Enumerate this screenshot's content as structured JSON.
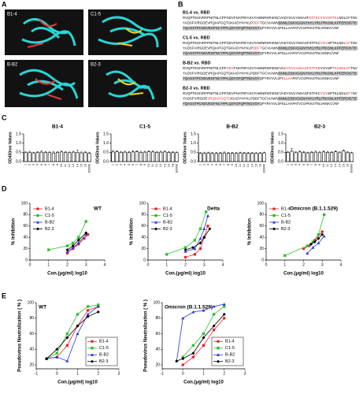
{
  "panel_labels": [
    "A",
    "B",
    "C",
    "D",
    "E"
  ],
  "structures": [
    "B1-4",
    "C1-5",
    "B-B2",
    "B2-3"
  ],
  "alignments": [
    {
      "title": "B1-4 vs. RBD",
      "lines": [
        [
          {
            "text": "RVQPTESIVRFPNITNLCPFGEVFNATRFASVYAWNRKRISNCVADYSVLYNSASF",
            "style": "plain"
          },
          {
            "text": "STFKCYGVSPTKL",
            "style": "red"
          },
          {
            "text": "NDLCFTNV",
            "style": "plain"
          }
        ],
        [
          {
            "text": "YADSFVIRGDEVRQIAPGQTGKIADYNYKLP",
            "style": "plain"
          },
          {
            "text": "DDF",
            "style": "red"
          },
          {
            "text": "TGCVIAWN",
            "style": "plain"
          },
          {
            "text": "SNNLDSKVGGNYNYLYRLFRKSNLKPFERDISTEI",
            "style": "shaded"
          }
        ],
        [
          {
            "text": "YQAGSTPCNGVEGFNCYFPLQSYGFQPTNGVGYQ",
            "style": "shaded"
          },
          {
            "text": "PYRVVVLSFELLHAPATVCGPKKSTNLVKNKCVNF",
            "style": "plain"
          }
        ]
      ]
    },
    {
      "title": "C1-5 vs. RBD",
      "lines": [
        [
          {
            "text": "RVQPTESIVRFPNITNLCPFGEVFNATRFASVYAWNRKRISNCVADYSVLYNSASFSTFKC",
            "style": "plain"
          },
          {
            "text": "YGV",
            "style": "red"
          },
          {
            "text": "SPTKLND",
            "style": "plain"
          },
          {
            "text": "LCF",
            "style": "red"
          },
          {
            "text": "TNV",
            "style": "plain"
          }
        ],
        [
          {
            "text": "YADSFVIRGDEVRQIAPGQTGKIADYNYKLP",
            "style": "plain"
          },
          {
            "text": "DDFT",
            "style": "red"
          },
          {
            "text": "GCVIAWN",
            "style": "plain"
          },
          {
            "text": "SNNLDSKVGGNYNYLYRLFRKSNLKPFERDISTEI",
            "style": "shaded"
          }
        ],
        [
          {
            "text": "YQAGSTPCNGVEGFNCYFPLQSYGFQPTNGVGYQ",
            "style": "shaded"
          },
          {
            "text": "PYRVVVLSFELLHAPATVCGPKKSTNLVKNKCVNF",
            "style": "plain"
          }
        ]
      ]
    },
    {
      "title": "B-B2 vs. RBD",
      "lines": [
        [
          {
            "text": "RVQPTESIVRFPNITNLCPF",
            "style": "plain"
          },
          {
            "text": "GEV",
            "style": "red"
          },
          {
            "text": "FNATRFASVYAWNRKRISNCVA",
            "style": "plain"
          },
          {
            "text": "DYSVLYNSASFSTFK",
            "style": "red"
          },
          {
            "text": "CYGVSP",
            "style": "plain"
          },
          {
            "text": "TKLNDLCF",
            "style": "red"
          },
          {
            "text": "TNV",
            "style": "plain"
          }
        ],
        [
          {
            "text": "YADSFVIRGDEVRQIAPGQTGKIADYNYKLPDDFTGCVIAWN",
            "style": "plain"
          },
          {
            "text": "SNNLDSKVGGNYNYLYRLFRKSNLKPFERDISTEI",
            "style": "shaded"
          }
        ],
        [
          {
            "text": "YQAGSTPCNGVEGFNCYFPLQSYGFQPTNGVGYQ",
            "style": "shaded"
          },
          {
            "text": "PYRVVVLSF",
            "style": "plain"
          },
          {
            "text": "ELLHA",
            "style": "red"
          },
          {
            "text": "PATVCGPKKSTNLVKNKCVNF",
            "style": "plain"
          }
        ]
      ]
    },
    {
      "title": "B2-3 vs. RBD",
      "lines": [
        [
          {
            "text": "RVQPTESIVRFPNITNLCPFGEVFNATRFASVYAWNRKRISNCVADYSVLYNSASFSTFKC",
            "style": "plain"
          },
          {
            "text": "YGV",
            "style": "red"
          },
          {
            "text": "SPTKLNDLC",
            "style": "plain"
          },
          {
            "text": "FT",
            "style": "red"
          },
          {
            "text": "NV",
            "style": "plain"
          }
        ],
        [
          {
            "text": "YADSFVIRGDE",
            "style": "plain"
          },
          {
            "text": "VRQIAPGQTG",
            "style": "red"
          },
          {
            "text": "KIADYNYKLPDDFTGCVIAWN",
            "style": "plain"
          },
          {
            "text": "SNNLDSKVGGNYNYLYRLFRKSNLKPFERDISTEI",
            "style": "shaded"
          }
        ],
        [
          {
            "text": "YQAGSTPCNGVEGFNCYFPLQSYGFQPTNGVGYQ",
            "style": "shaded"
          },
          {
            "text": "PYRVVVLSFELLHAPATVCGPKKSTNLVKNKCVNF",
            "style": "plain"
          }
        ]
      ]
    }
  ],
  "chart_data": [
    {
      "type": "bar",
      "title": "B1-4",
      "y_label": "OD450nm Values",
      "color": "#ffffff",
      "edgecolor": "#000000",
      "categories": [
        "1",
        "2",
        "3",
        "4",
        "5",
        "6",
        "7",
        "8",
        "9",
        "10",
        "11",
        "12",
        "13",
        "14",
        "15",
        "16",
        "E6000"
      ],
      "values": [
        0.48,
        0.5,
        0.47,
        0.49,
        0.51,
        0.5,
        0.48,
        0.47,
        0.5,
        0.52,
        0.49,
        0.48,
        0.51,
        0.5,
        0.47,
        0.49,
        0.46
      ],
      "errors": [
        0.05,
        0.06,
        0.04,
        0.05,
        0.07,
        0.05,
        0.04,
        0.06,
        0.05,
        0.05,
        0.06,
        0.04,
        0.05,
        0.12,
        0.05,
        0.04,
        0.05
      ],
      "ylim": [
        0,
        1.5
      ],
      "yticks": [
        {
          "value": 0,
          "label": "0.0"
        },
        0.5,
        {
          "value": 1,
          "label": "1.0"
        },
        1.5
      ]
    },
    {
      "type": "bar",
      "title": "C1-5",
      "y_label": "OD450nm Values",
      "color": "#ffffff",
      "edgecolor": "#000000",
      "categories": [
        "1",
        "2",
        "3",
        "4",
        "5",
        "6",
        "7",
        "8",
        "9",
        "10",
        "11",
        "12",
        "13",
        "14",
        "15",
        "16",
        "E6000"
      ],
      "values": [
        0.52,
        0.53,
        0.5,
        0.51,
        0.49,
        0.52,
        0.54,
        0.5,
        0.51,
        0.53,
        0.52,
        0.5,
        0.51,
        0.52,
        0.5,
        0.49,
        0.48
      ],
      "errors": [
        0.08,
        0.06,
        0.05,
        0.05,
        0.06,
        0.07,
        0.05,
        0.06,
        0.05,
        0.05,
        0.06,
        0.05,
        0.05,
        0.06,
        0.05,
        0.05,
        0.04
      ],
      "ylim": [
        0,
        1.5
      ],
      "yticks": [
        {
          "value": 0,
          "label": "0.0"
        },
        0.5,
        {
          "value": 1,
          "label": "1.0"
        },
        1.5
      ]
    },
    {
      "type": "bar",
      "title": "B-B2",
      "y_label": "OD450nm Values",
      "color": "#ffffff",
      "edgecolor": "#000000",
      "categories": [
        "1",
        "2",
        "3",
        "4",
        "5",
        "6",
        "7",
        "8",
        "9",
        "10",
        "11",
        "12",
        "13",
        "14",
        "15",
        "16",
        "E6000"
      ],
      "values": [
        0.45,
        0.46,
        0.47,
        0.45,
        0.44,
        0.46,
        0.47,
        0.45,
        0.46,
        0.44,
        0.47,
        0.46,
        0.45,
        0.46,
        0.44,
        0.45,
        0.47
      ],
      "errors": [
        0.04,
        0.05,
        0.04,
        0.04,
        0.05,
        0.04,
        0.05,
        0.04,
        0.04,
        0.05,
        0.04,
        0.04,
        0.05,
        0.04,
        0.04,
        0.05,
        0.04
      ],
      "ylim": [
        0,
        1.5
      ],
      "yticks": [
        {
          "value": 0,
          "label": "0.0"
        },
        0.5,
        {
          "value": 1,
          "label": "1.0"
        },
        1.5
      ]
    },
    {
      "type": "bar",
      "title": "B2-3",
      "y_label": "OD450nm Values",
      "color": "#ffffff",
      "edgecolor": "#000000",
      "categories": [
        "1",
        "2",
        "3",
        "4",
        "5",
        "6",
        "7",
        "8",
        "9",
        "10",
        "11",
        "12",
        "13",
        "14",
        "15",
        "16",
        "E6000"
      ],
      "values": [
        0.5,
        0.56,
        0.48,
        0.52,
        0.49,
        0.47,
        0.5,
        0.51,
        0.48,
        0.52,
        0.5,
        0.49,
        0.53,
        0.48,
        0.58,
        0.5,
        0.47
      ],
      "errors": [
        0.05,
        0.14,
        0.05,
        0.06,
        0.05,
        0.04,
        0.05,
        0.06,
        0.05,
        0.07,
        0.05,
        0.04,
        0.06,
        0.05,
        0.06,
        0.05,
        0.04
      ],
      "ylim": [
        0,
        1.5
      ],
      "yticks": [
        {
          "value": 0,
          "label": "0.0"
        },
        0.5,
        {
          "value": 1,
          "label": "1.0"
        },
        1.5
      ]
    },
    {
      "type": "line",
      "title": "WT",
      "x_label": "Con.(μg/ml) log10",
      "y_label": "% Inhibition",
      "legend": "upper left",
      "xlim": [
        0,
        4
      ],
      "xticks": [
        0,
        1,
        2,
        3,
        4
      ],
      "ylim": [
        0,
        100
      ],
      "yticks": [
        0,
        20,
        40,
        60,
        80,
        100
      ],
      "series": [
        {
          "name": "B1-4",
          "color": "#e8262b",
          "marker": "circle",
          "x": [
            2.0,
            2.3,
            2.6,
            2.9,
            3.1
          ],
          "values": [
            12,
            20,
            28,
            38,
            45
          ]
        },
        {
          "name": "C1-5",
          "color": "#2fc02f",
          "marker": "square",
          "x": [
            1.0,
            2.0,
            2.3,
            2.6,
            3.0
          ],
          "values": [
            18,
            25,
            30,
            40,
            68
          ]
        },
        {
          "name": "B-B2",
          "color": "#2a35d8",
          "marker": "triangle",
          "x": [
            2.0,
            2.3,
            2.6,
            3.0
          ],
          "values": [
            15,
            22,
            30,
            45
          ]
        },
        {
          "name": "B2-3",
          "color": "#000000",
          "marker": "diamond",
          "x": [
            2.0,
            2.3,
            2.6,
            3.0
          ],
          "values": [
            18,
            25,
            35,
            48
          ]
        }
      ]
    },
    {
      "type": "line",
      "title": "Delta",
      "x_label": "Con.(μg/ml) log10",
      "y_label": "% Inhibition",
      "legend": "upper left",
      "xlim": [
        0,
        4
      ],
      "xticks": [
        0,
        1,
        2,
        3,
        4
      ],
      "ylim": [
        0,
        100
      ],
      "yticks": [
        0,
        20,
        40,
        60,
        80,
        100
      ],
      "series": [
        {
          "name": "B1-4",
          "color": "#e8262b",
          "marker": "circle",
          "x": [
            2.0,
            2.5,
            2.8,
            3.0,
            3.2
          ],
          "values": [
            5,
            10,
            20,
            40,
            60
          ]
        },
        {
          "name": "C1-5",
          "color": "#2fc02f",
          "marker": "square",
          "x": [
            1.0,
            2.0,
            2.5,
            2.8,
            3.1
          ],
          "values": [
            10,
            22,
            35,
            55,
            85
          ]
        },
        {
          "name": "B-B2",
          "color": "#2a35d8",
          "marker": "triangle",
          "x": [
            2.0,
            2.5,
            2.8,
            3.0,
            3.2
          ],
          "values": [
            15,
            20,
            38,
            55,
            78
          ]
        },
        {
          "name": "B2-3",
          "color": "#000000",
          "marker": "diamond",
          "x": [
            2.0,
            2.4,
            2.8,
            3.0,
            3.3
          ],
          "values": [
            18,
            22,
            30,
            40,
            55
          ]
        }
      ]
    },
    {
      "type": "line",
      "title": "Omicron (B.1.1.529)",
      "x_label": "Con.(μg/ml) log10",
      "y_label": "% Inhibition",
      "legend": "upper left",
      "xlim": [
        0,
        4
      ],
      "xticks": [
        0,
        1,
        2,
        3,
        4
      ],
      "ylim": [
        0,
        100
      ],
      "yticks": [
        0,
        20,
        40,
        60,
        80,
        100
      ],
      "series": [
        {
          "name": "B1-4",
          "color": "#e8262b",
          "marker": "circle",
          "x": [
            2.0,
            2.3,
            2.6,
            3.0
          ],
          "values": [
            20,
            25,
            35,
            50
          ]
        },
        {
          "name": "C1-5",
          "color": "#2fc02f",
          "marker": "square",
          "x": [
            1.0,
            2.2,
            2.5,
            2.8,
            3.1
          ],
          "values": [
            8,
            25,
            32,
            45,
            80
          ]
        },
        {
          "name": "B-B2",
          "color": "#2a35d8",
          "marker": "triangle",
          "x": [
            2.2,
            2.5,
            2.8,
            3.1
          ],
          "values": [
            12,
            22,
            30,
            42
          ]
        },
        {
          "name": "B2-3",
          "color": "#000000",
          "marker": "diamond",
          "x": [
            2.4,
            2.6,
            2.8,
            3.0
          ],
          "values": [
            28,
            32,
            38,
            45
          ]
        }
      ]
    },
    {
      "type": "line",
      "title": "WT",
      "x_label": "Con.(μg/ml) log10",
      "y_label": "Pseudovirus Neutralization ( % )",
      "legend": "lower right",
      "xlim": [
        -1,
        3
      ],
      "xticks": [
        -1,
        0,
        1,
        2,
        3
      ],
      "ylim": [
        15,
        100
      ],
      "yticks": [
        20,
        40,
        60,
        80,
        100
      ],
      "series": [
        {
          "name": "B1-4",
          "color": "#e8262b",
          "marker": "circle",
          "x": [
            -0.5,
            0,
            0.5,
            1,
            1.5,
            2
          ],
          "values": [
            28,
            30,
            45,
            70,
            90,
            95
          ]
        },
        {
          "name": "C1-5",
          "color": "#2fc02f",
          "marker": "square",
          "x": [
            -0.5,
            0,
            0.5,
            1,
            1.5,
            2
          ],
          "values": [
            28,
            35,
            60,
            85,
            95,
            97
          ]
        },
        {
          "name": "B-B2",
          "color": "#2a35d8",
          "marker": "triangle",
          "x": [
            -0.5,
            0,
            0.5,
            1,
            1.5,
            2
          ],
          "values": [
            28,
            30,
            25,
            60,
            85,
            95
          ]
        },
        {
          "name": "B2-3",
          "color": "#000000",
          "marker": "diamond",
          "x": [
            -0.5,
            0,
            0.5,
            1,
            1.5,
            2
          ],
          "values": [
            28,
            40,
            55,
            70,
            82,
            88
          ]
        }
      ]
    },
    {
      "type": "line",
      "title": "Omicron (B.1.1.529)",
      "x_label": "Con.(μg/ml) log10",
      "y_label": "Pseudovirus Neutralization ( % )",
      "legend": "lower right",
      "xlim": [
        -1,
        3
      ],
      "xticks": [
        -1,
        0,
        1,
        2,
        3
      ],
      "ylim": [
        15,
        100
      ],
      "yticks": [
        20,
        40,
        60,
        80,
        100
      ],
      "series": [
        {
          "name": "B1-4",
          "color": "#e8262b",
          "marker": "circle",
          "x": [
            0,
            0.5,
            1,
            1.5,
            2
          ],
          "values": [
            20,
            30,
            45,
            65,
            80
          ]
        },
        {
          "name": "C1-5",
          "color": "#2fc02f",
          "marker": "square",
          "x": [
            0,
            0.5,
            1,
            1.5,
            2
          ],
          "values": [
            30,
            45,
            60,
            85,
            95
          ]
        },
        {
          "name": "B-B2",
          "color": "#2a35d8",
          "marker": "triangle",
          "x": [
            -0.3,
            0,
            0.5,
            1,
            1.5,
            2
          ],
          "values": [
            25,
            80,
            88,
            90,
            95,
            98
          ]
        },
        {
          "name": "B2-3",
          "color": "#000000",
          "marker": "diamond",
          "x": [
            -0.3,
            0,
            0.5,
            1,
            1.5,
            2
          ],
          "values": [
            25,
            28,
            35,
            55,
            70,
            85
          ]
        }
      ]
    }
  ]
}
